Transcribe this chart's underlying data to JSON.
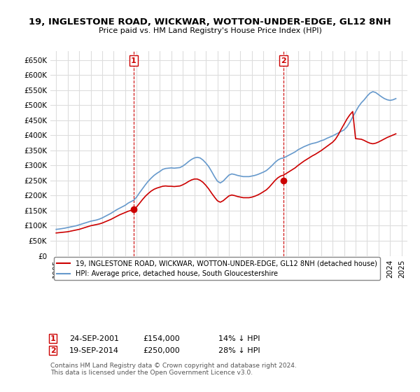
{
  "title": "19, INGLESTONE ROAD, WICKWAR, WOTTON-UNDER-EDGE, GL12 8NH",
  "subtitle": "Price paid vs. HM Land Registry's House Price Index (HPI)",
  "ylabel_ticks": [
    "£0",
    "£50K",
    "£100K",
    "£150K",
    "£200K",
    "£250K",
    "£300K",
    "£350K",
    "£400K",
    "£450K",
    "£500K",
    "£550K",
    "£600K",
    "£650K"
  ],
  "ytick_values": [
    0,
    50000,
    100000,
    150000,
    200000,
    250000,
    300000,
    350000,
    400000,
    450000,
    500000,
    550000,
    600000,
    650000
  ],
  "ylim": [
    0,
    680000
  ],
  "xlim_start": 1994.5,
  "xlim_end": 2025.5,
  "purchase1": {
    "date": "24-SEP-2001",
    "price": 154000,
    "label": "1",
    "year": 2001.73
  },
  "purchase2": {
    "date": "19-SEP-2014",
    "price": 250000,
    "label": "2",
    "year": 2014.72
  },
  "legend_line1": "19, INGLESTONE ROAD, WICKWAR, WOTTON-UNDER-EDGE, GL12 8NH (detached house)",
  "legend_line2": "HPI: Average price, detached house, South Gloucestershire",
  "annotation1": "24-SEP-2001        £154,000        14% ↓ HPI",
  "annotation2": "19-SEP-2014        £250,000        28% ↓ HPI",
  "footer": "Contains HM Land Registry data © Crown copyright and database right 2024.\nThis data is licensed under the Open Government Licence v3.0.",
  "red_color": "#cc0000",
  "blue_color": "#6699cc",
  "grid_color": "#dddddd",
  "background_color": "#ffffff",
  "hpi_years": [
    1995,
    1995.25,
    1995.5,
    1995.75,
    1996,
    1996.25,
    1996.5,
    1996.75,
    1997,
    1997.25,
    1997.5,
    1997.75,
    1998,
    1998.25,
    1998.5,
    1998.75,
    1999,
    1999.25,
    1999.5,
    1999.75,
    2000,
    2000.25,
    2000.5,
    2000.75,
    2001,
    2001.25,
    2001.5,
    2001.75,
    2002,
    2002.25,
    2002.5,
    2002.75,
    2003,
    2003.25,
    2003.5,
    2003.75,
    2004,
    2004.25,
    2004.5,
    2004.75,
    2005,
    2005.25,
    2005.5,
    2005.75,
    2006,
    2006.25,
    2006.5,
    2006.75,
    2007,
    2007.25,
    2007.5,
    2007.75,
    2008,
    2008.25,
    2008.5,
    2008.75,
    2009,
    2009.25,
    2009.5,
    2009.75,
    2010,
    2010.25,
    2010.5,
    2010.75,
    2011,
    2011.25,
    2011.5,
    2011.75,
    2012,
    2012.25,
    2012.5,
    2012.75,
    2013,
    2013.25,
    2013.5,
    2013.75,
    2014,
    2014.25,
    2014.5,
    2014.75,
    2015,
    2015.25,
    2015.5,
    2015.75,
    2016,
    2016.25,
    2016.5,
    2016.75,
    2017,
    2017.25,
    2017.5,
    2017.75,
    2018,
    2018.25,
    2018.5,
    2018.75,
    2019,
    2019.25,
    2019.5,
    2019.75,
    2020,
    2020.25,
    2020.5,
    2020.75,
    2021,
    2021.25,
    2021.5,
    2021.75,
    2022,
    2022.25,
    2022.5,
    2022.75,
    2023,
    2023.25,
    2023.5,
    2023.75,
    2024,
    2024.25,
    2024.5
  ],
  "hpi_values": [
    88000,
    89000,
    90500,
    92000,
    94000,
    96000,
    98000,
    100000,
    103000,
    106000,
    109000,
    112000,
    115000,
    117000,
    119000,
    122000,
    126000,
    131000,
    136000,
    141000,
    147000,
    153000,
    158000,
    163000,
    168000,
    175000,
    180000,
    185000,
    196000,
    210000,
    223000,
    236000,
    248000,
    258000,
    267000,
    274000,
    280000,
    287000,
    290000,
    291000,
    292000,
    291000,
    292000,
    293000,
    298000,
    305000,
    313000,
    320000,
    325000,
    327000,
    325000,
    318000,
    308000,
    296000,
    280000,
    263000,
    248000,
    242000,
    248000,
    258000,
    268000,
    272000,
    270000,
    267000,
    265000,
    263000,
    263000,
    263000,
    265000,
    267000,
    270000,
    274000,
    278000,
    283000,
    291000,
    300000,
    310000,
    318000,
    323000,
    325000,
    330000,
    335000,
    340000,
    345000,
    352000,
    357000,
    362000,
    366000,
    370000,
    373000,
    375000,
    378000,
    382000,
    385000,
    390000,
    394000,
    398000,
    403000,
    408000,
    413000,
    418000,
    428000,
    443000,
    461000,
    478000,
    495000,
    508000,
    518000,
    530000,
    540000,
    545000,
    542000,
    535000,
    528000,
    522000,
    518000,
    516000,
    518000,
    522000
  ],
  "price_years": [
    1995,
    1995.25,
    1995.5,
    1995.75,
    1996,
    1996.25,
    1996.5,
    1996.75,
    1997,
    1997.25,
    1997.5,
    1997.75,
    1998,
    1998.25,
    1998.5,
    1998.75,
    1999,
    1999.25,
    1999.5,
    1999.75,
    2000,
    2000.25,
    2000.5,
    2000.75,
    2001,
    2001.25,
    2001.5,
    2001.75,
    2002,
    2002.25,
    2002.5,
    2002.75,
    2003,
    2003.25,
    2003.5,
    2003.75,
    2004,
    2004.25,
    2004.5,
    2004.75,
    2005,
    2005.25,
    2005.5,
    2005.75,
    2006,
    2006.25,
    2006.5,
    2006.75,
    2007,
    2007.25,
    2007.5,
    2007.75,
    2008,
    2008.25,
    2008.5,
    2008.75,
    2009,
    2009.25,
    2009.5,
    2009.75,
    2010,
    2010.25,
    2010.5,
    2010.75,
    2011,
    2011.25,
    2011.5,
    2011.75,
    2012,
    2012.25,
    2012.5,
    2012.75,
    2013,
    2013.25,
    2013.5,
    2013.75,
    2014,
    2014.25,
    2014.5,
    2014.75,
    2015,
    2015.25,
    2015.5,
    2015.75,
    2016,
    2016.25,
    2016.5,
    2016.75,
    2017,
    2017.25,
    2017.5,
    2017.75,
    2018,
    2018.25,
    2018.5,
    2018.75,
    2019,
    2019.25,
    2019.5,
    2019.75,
    2020,
    2020.25,
    2020.5,
    2020.75,
    2021,
    2021.25,
    2021.5,
    2021.75,
    2022,
    2022.25,
    2022.5,
    2022.75,
    2023,
    2023.25,
    2023.5,
    2023.75,
    2024,
    2024.25,
    2024.5
  ],
  "price_values": [
    76000,
    77000,
    78000,
    79000,
    80000,
    82000,
    84000,
    86000,
    88000,
    91000,
    94000,
    97000,
    100000,
    102000,
    104000,
    106000,
    109000,
    113000,
    117000,
    121000,
    126000,
    131000,
    136000,
    140000,
    144000,
    148000,
    151000,
    154000,
    163000,
    175000,
    187000,
    198000,
    207000,
    215000,
    221000,
    225000,
    228000,
    231000,
    232000,
    231000,
    231000,
    230000,
    231000,
    232000,
    236000,
    241000,
    247000,
    252000,
    255000,
    255000,
    251000,
    244000,
    234000,
    222000,
    208000,
    195000,
    183000,
    178000,
    183000,
    191000,
    199000,
    202000,
    200000,
    197000,
    195000,
    193000,
    193000,
    193000,
    195000,
    198000,
    202000,
    207000,
    213000,
    219000,
    228000,
    239000,
    250000,
    259000,
    265000,
    268000,
    274000,
    280000,
    286000,
    292000,
    300000,
    307000,
    314000,
    320000,
    326000,
    332000,
    337000,
    343000,
    349000,
    356000,
    363000,
    370000,
    377000,
    387000,
    402000,
    420000,
    437000,
    454000,
    468000,
    479000,
    389000,
    388000,
    387000,
    383000,
    378000,
    374000,
    372000,
    374000,
    378000,
    383000,
    388000,
    393000,
    397000,
    401000,
    405000
  ]
}
